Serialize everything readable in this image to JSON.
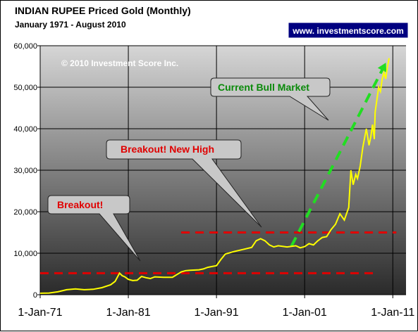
{
  "chart_data": {
    "type": "line",
    "title": "INDIAN RUPEE Priced Gold (Monthly)",
    "subtitle": "January 1971 - August 2010",
    "badge": "www. investmentscore.com",
    "copyright": "© 2010 Investment Score Inc.",
    "xlabel": "",
    "ylabel": "",
    "xlim": [
      1971,
      2012.5
    ],
    "ylim": [
      0,
      60000
    ],
    "yticks": [
      0,
      10000,
      20000,
      30000,
      40000,
      50000,
      60000
    ],
    "ytick_labels": [
      "0",
      "10,000",
      "20,000",
      "30,000",
      "40,000",
      "50,000",
      "60,000"
    ],
    "xticks": [
      1971,
      1981,
      1991,
      2001,
      2011
    ],
    "xtick_labels": [
      "1-Jan-71",
      "1-Jan-81",
      "1-Jan-91",
      "1-Jan-01",
      "1-Jan-11"
    ],
    "grid": true,
    "colors": {
      "series": "#ffff00",
      "resistance": "#e00000",
      "trend": "#22dd22",
      "badge_bg": "#000080",
      "badge_text": "#ffffff"
    },
    "series": [
      {
        "x": [
          1971.0,
          1972.0,
          1973.0,
          1974.0,
          1975.0,
          1976.0,
          1977.0,
          1978.0,
          1979.0,
          1979.5,
          1980.0,
          1980.3,
          1980.6,
          1981.0,
          1981.5,
          1982.0,
          1982.5,
          1983.0,
          1983.5,
          1984.0,
          1985.0,
          1986.0,
          1987.0,
          1987.5,
          1988.0,
          1989.0,
          1989.5,
          1990.0,
          1990.5,
          1991.0,
          1991.5,
          1992.0,
          1993.0,
          1994.0,
          1995.0,
          1995.5,
          1996.0,
          1996.5,
          1997.0,
          1997.5,
          1998.0,
          1999.0,
          2000.0,
          2000.5,
          2001.0,
          2001.5,
          2002.0,
          2002.5,
          2003.0,
          2003.5,
          2004.0,
          2004.5,
          2005.0,
          2005.5,
          2006.0,
          2006.25,
          2006.5,
          2006.8,
          2007.0,
          2007.3,
          2007.6,
          2008.0,
          2008.3,
          2008.5,
          2008.7,
          2008.9,
          2009.0,
          2009.2,
          2009.4,
          2009.6,
          2009.8,
          2010.0,
          2010.2,
          2010.4,
          2010.58
        ],
        "y": [
          350,
          400,
          700,
          1200,
          1400,
          1200,
          1300,
          1700,
          2400,
          3200,
          5200,
          4600,
          4300,
          3700,
          3400,
          3500,
          4400,
          4100,
          3900,
          4300,
          4200,
          4200,
          5500,
          5800,
          5900,
          6000,
          6200,
          6600,
          6800,
          7000,
          8500,
          9800,
          10400,
          10900,
          11400,
          13000,
          13500,
          13000,
          12000,
          11500,
          11800,
          11500,
          11800,
          11300,
          11600,
          12300,
          12000,
          13000,
          13800,
          14000,
          15700,
          17000,
          19500,
          18000,
          21000,
          30000,
          26500,
          29000,
          28000,
          31000,
          35500,
          40000,
          36000,
          38000,
          41000,
          37500,
          44000,
          47000,
          50000,
          49000,
          52000,
          53500,
          52000,
          55000,
          57000
        ]
      }
    ],
    "annotations": [
      {
        "text": "Breakout!",
        "kind": "callout",
        "color": "#e00000"
      },
      {
        "text": "Breakout! New High",
        "kind": "callout",
        "color": "#e00000"
      },
      {
        "text": "Current Bull Market",
        "kind": "callout",
        "color": "#0a8a0a"
      }
    ],
    "reference_lines": [
      {
        "y": 5200,
        "x0": 1971,
        "x1": 2009.3
      },
      {
        "y": 15000,
        "x0": 1987,
        "x1": 2011.4
      }
    ],
    "trend_line": {
      "x": [
        1999.5,
        2010.0
      ],
      "y": [
        11700,
        55000
      ]
    }
  }
}
